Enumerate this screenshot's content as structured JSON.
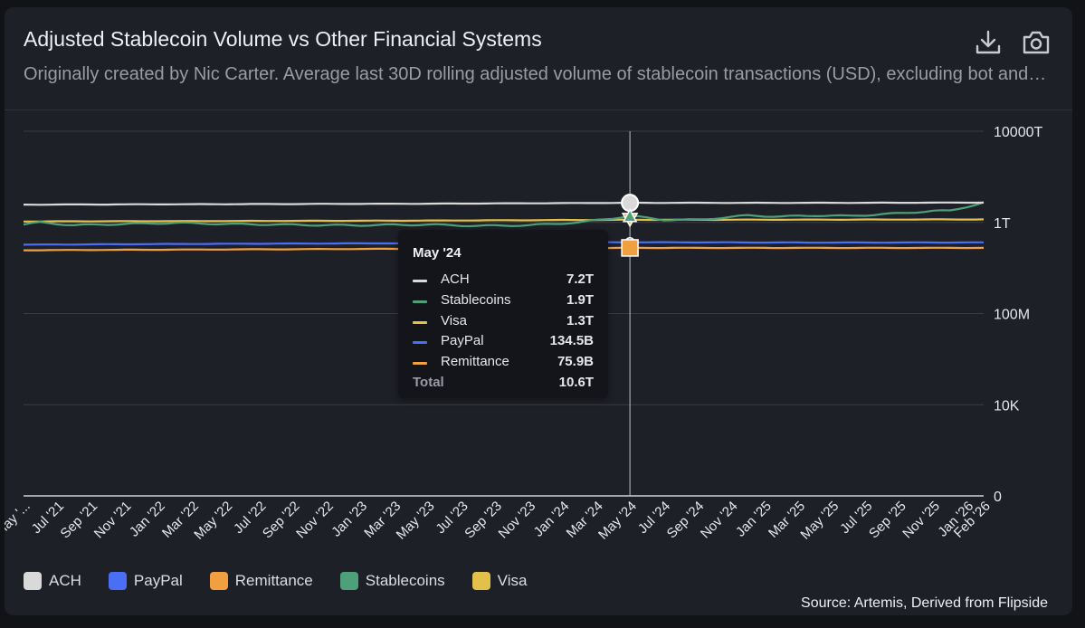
{
  "header": {
    "title": "Adjusted Stablecoin Volume vs Other Financial Systems",
    "subtitle": "Originally created by Nic Carter. Average last 30D rolling adjusted volume of stablecoin transactions (USD), excluding bot and intra-exchange activity",
    "download_icon": "download-icon",
    "camera_icon": "camera-icon"
  },
  "source": "Source: Artemis, Derived from Flipside",
  "colors": {
    "ACH": "#d9d9d9",
    "PayPal": "#4a6ff5",
    "Remittance": "#f0a040",
    "Stablecoins": "#4ea07a",
    "Visa": "#e3c04a"
  },
  "legend": [
    {
      "name": "ACH"
    },
    {
      "name": "PayPal"
    },
    {
      "name": "Remittance"
    },
    {
      "name": "Stablecoins"
    },
    {
      "name": "Visa"
    }
  ],
  "tooltip": {
    "title": "May '24",
    "rows": [
      {
        "name": "ACH",
        "value": "7.2T"
      },
      {
        "name": "Stablecoins",
        "value": "1.9T"
      },
      {
        "name": "Visa",
        "value": "1.3T"
      },
      {
        "name": "PayPal",
        "value": "134.5B"
      },
      {
        "name": "Remittance",
        "value": "75.9B"
      }
    ],
    "total_label": "Total",
    "total_value": "10.6T"
  },
  "chart_data": {
    "type": "line",
    "title": "Adjusted Stablecoin Volume vs Other Financial Systems",
    "y_scale": "log",
    "y_ticks": [
      {
        "label": "10000T",
        "value": 1e+16
      },
      {
        "label": "1T",
        "value": 1000000000000.0
      },
      {
        "label": "100M",
        "value": 100000000.0
      },
      {
        "label": "10K",
        "value": 10000.0
      },
      {
        "label": "0",
        "value": 1
      }
    ],
    "x_ticks": [
      "May '...",
      "Jul '21",
      "Sep '21",
      "Nov '21",
      "Jan '22",
      "Mar '22",
      "May '22",
      "Jul '22",
      "Sep '22",
      "Nov '22",
      "Jan '23",
      "Mar '23",
      "May '23",
      "Jul '23",
      "Sep '23",
      "Nov '23",
      "Jan '24",
      "Mar '24",
      "May '24",
      "Jul '24",
      "Sep '24",
      "Nov '24",
      "Jan '25",
      "Mar '25",
      "May '25",
      "Jul '25",
      "Sep '25",
      "Nov '25",
      "Jan '26",
      "Feb '26"
    ],
    "x_tick_months": [
      0,
      2,
      4,
      6,
      8,
      10,
      12,
      14,
      16,
      18,
      20,
      22,
      24,
      26,
      28,
      30,
      32,
      34,
      36,
      38,
      40,
      42,
      44,
      46,
      48,
      50,
      52,
      54,
      56,
      57
    ],
    "x_range_months": [
      0,
      57
    ],
    "hover_month": 36,
    "series": [
      {
        "name": "ACH",
        "months": [
          0,
          12,
          24,
          36,
          48,
          57
        ],
        "values": [
          6000000000000.0,
          6300000000000.0,
          6600000000000.0,
          7200000000000.0,
          7200000000000.0,
          7400000000000.0
        ]
      },
      {
        "name": "PayPal",
        "months": [
          0,
          12,
          24,
          36,
          48,
          57
        ],
        "values": [
          105000000000.0,
          115000000000.0,
          122000000000.0,
          134500000000.0,
          130000000000.0,
          132000000000.0
        ]
      },
      {
        "name": "Remittance",
        "months": [
          0,
          12,
          24,
          36,
          48,
          57
        ],
        "values": [
          60000000000.0,
          65000000000.0,
          70000000000.0,
          75900000000.0,
          76000000000.0,
          76000000000.0
        ]
      },
      {
        "name": "Stablecoins",
        "months": [
          0,
          1,
          3,
          6,
          9,
          12,
          15,
          18,
          20,
          24,
          27,
          30,
          33,
          36,
          38,
          40,
          43,
          45,
          47,
          49,
          52,
          54,
          55,
          57
        ],
        "values": [
          800000000000.0,
          1000000000000.0,
          750000000000.0,
          850000000000.0,
          950000000000.0,
          850000000000.0,
          800000000000.0,
          750000000000.0,
          750000000000.0,
          800000000000.0,
          700000000000.0,
          750000000000.0,
          1000000000000.0,
          1900000000000.0,
          1300000000000.0,
          1300000000000.0,
          2000000000000.0,
          1800000000000.0,
          2000000000000.0,
          1900000000000.0,
          2500000000000.0,
          3200000000000.0,
          3200000000000.0,
          7400000000000.0
        ]
      },
      {
        "name": "Visa",
        "months": [
          0,
          12,
          24,
          36,
          48,
          57
        ],
        "values": [
          1100000000000.0,
          1150000000000.0,
          1200000000000.0,
          1300000000000.0,
          1320000000000.0,
          1350000000000.0
        ]
      }
    ]
  }
}
